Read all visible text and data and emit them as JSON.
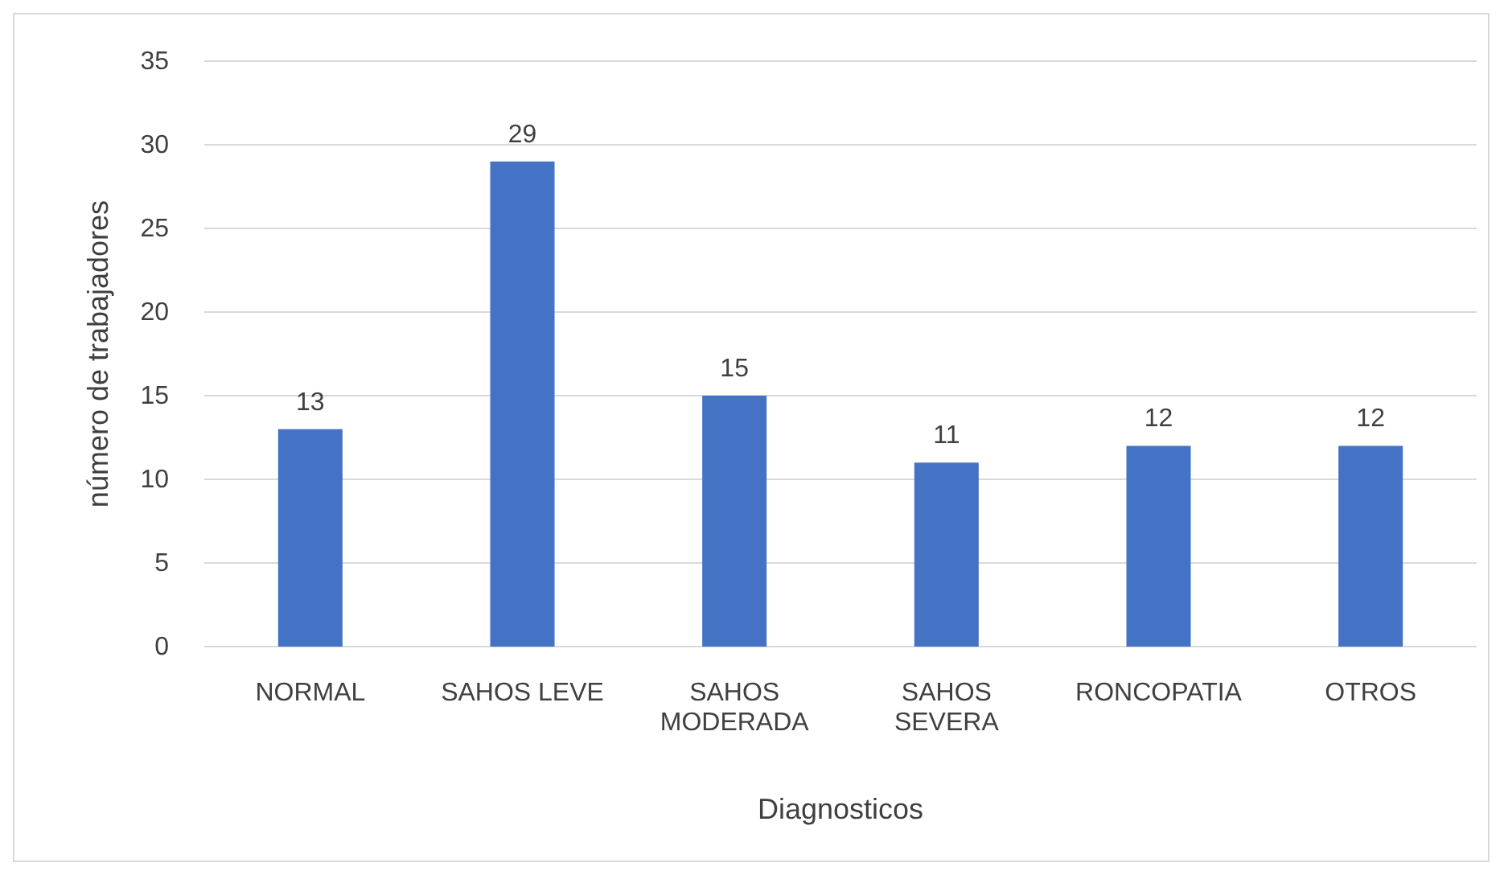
{
  "chart_data": {
    "type": "bar",
    "xlabel": "Diagnosticos",
    "ylabel": "número de trabajadores",
    "categories": [
      "NORMAL",
      "SAHOS LEVE",
      "SAHOS MODERADA",
      "SAHOS SEVERA",
      "RONCOPATIA",
      "OTROS"
    ],
    "values": [
      13,
      29,
      15,
      11,
      12,
      12
    ],
    "color": "#4472c4",
    "ylim": [
      0,
      35
    ],
    "yticks": [
      0,
      5,
      10,
      15,
      20,
      25,
      30,
      35
    ],
    "grid": "y",
    "data_labels": true
  }
}
